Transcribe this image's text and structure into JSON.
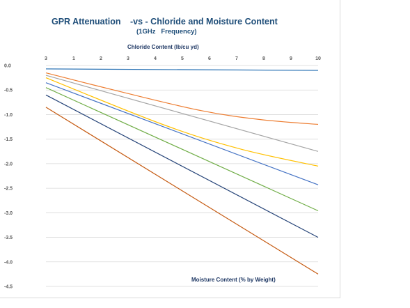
{
  "chart_data": {
    "type": "line",
    "title_part1": "GPR Attenuation",
    "title_part2": "-vs - Chloride and Moisture Content",
    "subtitle": "(1GHz   Frequency)",
    "top_axis_label": "Chloride Content (lb/cu yd)",
    "bottom_axis_label": "Moisture Content (% by Weight)",
    "x_ticks": [
      "3",
      "1",
      "2",
      "3",
      "4",
      "5",
      "6",
      "7",
      "8",
      "9",
      "10"
    ],
    "y_ticks": [
      "0.0",
      "-0.5",
      "-1.0",
      "-1.5",
      "-2.0",
      "-2.5",
      "-3.0",
      "-3.5",
      "-4.0",
      "-4.5"
    ],
    "ylim": [
      -4.5,
      0
    ],
    "grid": true,
    "colors": [
      "#2e75b6",
      "#ed7d31",
      "#a5a5a5",
      "#ffc000",
      "#4472c4",
      "#70ad47",
      "#264478",
      "#c55a11"
    ],
    "series": [
      {
        "color": "#2e75b6",
        "points": [
          [
            3,
            -0.07
          ],
          [
            10,
            -0.1
          ]
        ]
      },
      {
        "color": "#ed7d31",
        "points": [
          [
            3,
            -0.15
          ],
          [
            5,
            -0.55
          ],
          [
            7,
            -0.92
          ],
          [
            8.5,
            -1.1
          ],
          [
            10,
            -1.2
          ]
        ]
      },
      {
        "color": "#a5a5a5",
        "points": [
          [
            3,
            -0.2
          ],
          [
            10,
            -1.75
          ]
        ]
      },
      {
        "color": "#ffc000",
        "points": [
          [
            3,
            -0.25
          ],
          [
            6,
            -1.2
          ],
          [
            8,
            -1.7
          ],
          [
            10,
            -2.05
          ]
        ]
      },
      {
        "color": "#4472c4",
        "points": [
          [
            3,
            -0.35
          ],
          [
            10,
            -2.43
          ]
        ]
      },
      {
        "color": "#70ad47",
        "points": [
          [
            3,
            -0.45
          ],
          [
            10,
            -2.96
          ]
        ]
      },
      {
        "color": "#264478",
        "points": [
          [
            3,
            -0.6
          ],
          [
            10,
            -3.5
          ]
        ]
      },
      {
        "color": "#c55a11",
        "points": [
          [
            3,
            -0.85
          ],
          [
            10,
            -4.25
          ]
        ]
      }
    ]
  }
}
